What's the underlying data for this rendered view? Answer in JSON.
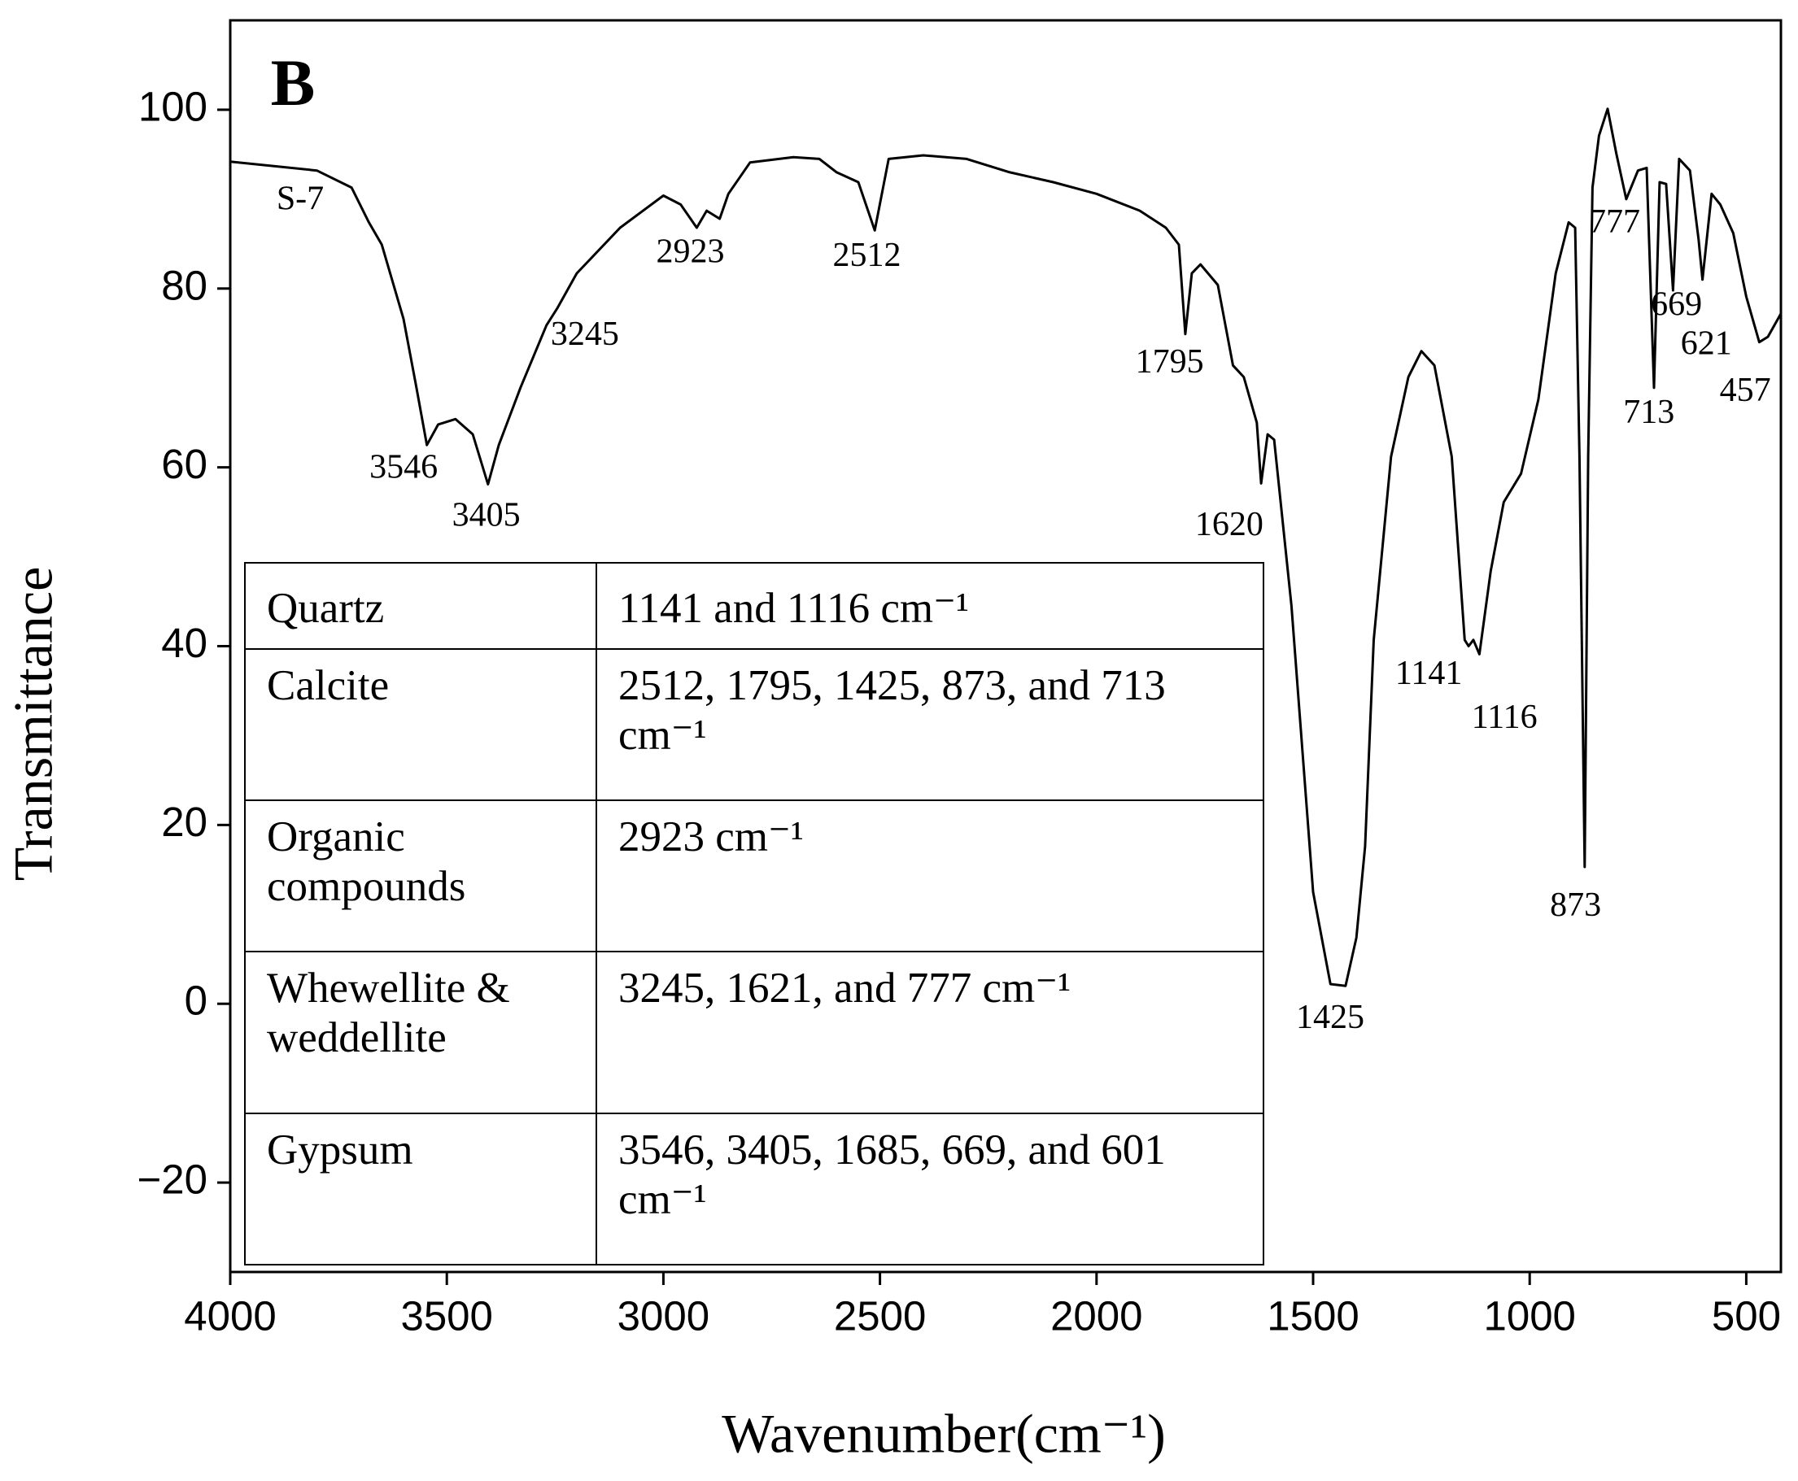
{
  "chart_data": {
    "type": "line",
    "panel_label": "B",
    "xlabel": "Wavenumber(cm⁻¹)",
    "ylabel": "Transmittance",
    "xlim": [
      4000,
      420
    ],
    "ylim": [
      -30,
      110
    ],
    "xticks": [
      4000,
      3500,
      3000,
      2500,
      2000,
      1500,
      1000,
      500
    ],
    "yticks": [
      {
        "value": -20,
        "label": "−20"
      },
      0,
      20,
      40,
      60,
      80,
      100
    ],
    "series": [
      {
        "name": "S-7",
        "color": "#000000",
        "x": [
          4000,
          3800,
          3720,
          3680,
          3650,
          3600,
          3570,
          3546,
          3520,
          3480,
          3440,
          3405,
          3380,
          3330,
          3270,
          3245,
          3200,
          3100,
          3000,
          2960,
          2923,
          2900,
          2870,
          2850,
          2800,
          2700,
          2640,
          2600,
          2550,
          2512,
          2480,
          2400,
          2300,
          2200,
          2100,
          2000,
          1900,
          1840,
          1810,
          1795,
          1780,
          1760,
          1720,
          1685,
          1660,
          1630,
          1620,
          1605,
          1590,
          1550,
          1500,
          1460,
          1425,
          1400,
          1380,
          1360,
          1320,
          1280,
          1250,
          1220,
          1180,
          1150,
          1141,
          1130,
          1116,
          1090,
          1060,
          1020,
          980,
          940,
          910,
          895,
          885,
          873,
          865,
          855,
          840,
          820,
          800,
          777,
          750,
          730,
          713,
          700,
          685,
          669,
          655,
          630,
          610,
          601,
          580,
          560,
          530,
          500,
          470,
          450,
          420
        ],
        "values": [
          94.2,
          93.2,
          91.3,
          87.4,
          84.9,
          76.6,
          68.9,
          62.5,
          64.8,
          65.4,
          63.7,
          58.1,
          62.5,
          68.9,
          75.9,
          77.8,
          81.7,
          86.8,
          90.4,
          89.4,
          86.8,
          88.7,
          87.8,
          90.6,
          94.1,
          94.7,
          94.5,
          93.0,
          91.9,
          86.5,
          94.5,
          94.9,
          94.5,
          93.0,
          91.9,
          90.6,
          88.7,
          86.8,
          84.9,
          74.9,
          81.7,
          82.7,
          80.4,
          71.4,
          70.1,
          65.0,
          58.2,
          63.7,
          63.1,
          44.5,
          12.5,
          2.2,
          2.0,
          7.4,
          17.6,
          40.7,
          61.2,
          70.1,
          73.0,
          71.4,
          61.2,
          40.7,
          40.0,
          40.7,
          39.1,
          48.4,
          56.1,
          59.3,
          67.6,
          81.7,
          87.4,
          86.8,
          61.2,
          15.3,
          61.2,
          91.3,
          97.1,
          100.1,
          95.1,
          90.0,
          93.2,
          93.5,
          68.9,
          91.9,
          91.7,
          79.8,
          94.5,
          93.2,
          85.5,
          81.0,
          90.6,
          89.4,
          86.2,
          79.1,
          74.0,
          74.6,
          77.2
        ]
      }
    ],
    "peak_labels": [
      3546,
      3405,
      3245,
      2923,
      2512,
      1795,
      1620,
      1425,
      1141,
      1116,
      873,
      777,
      669,
      621,
      713,
      457
    ]
  },
  "table": {
    "rows": [
      [
        "Quartz",
        "1141 and 1116 cm⁻¹"
      ],
      [
        "Calcite",
        "2512,  1795, 1425, 873,  and 713 cm⁻¹"
      ],
      [
        "Organic compounds",
        "2923 cm⁻¹"
      ],
      [
        "Whewellite & weddellite",
        "3245, 1621, and 777 cm⁻¹"
      ],
      [
        "Gypsum",
        "3546, 3405, 1685, 669, and 601 cm⁻¹"
      ]
    ]
  }
}
